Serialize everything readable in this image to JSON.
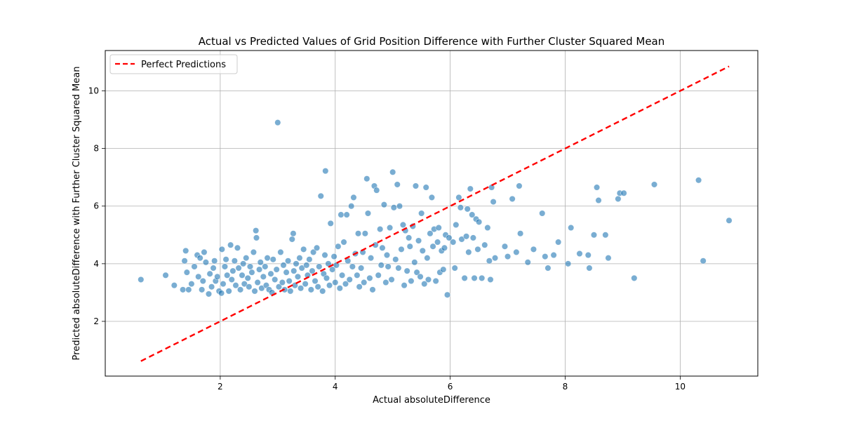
{
  "chart_data": {
    "type": "scatter",
    "title": "Actual vs Predicted Values of Grid Position Difference with Further Cluster Squared Mean",
    "xlabel": "Actual absoluteDifference",
    "ylabel": "Predicted absoluteDifference with Further Cluster Squared Mean",
    "xlim": [
      0.0,
      11.35
    ],
    "ylim": [
      0.1,
      11.4
    ],
    "x_ticks": [
      2,
      4,
      6,
      8,
      10
    ],
    "y_ticks": [
      2,
      4,
      6,
      8,
      10
    ],
    "grid": true,
    "legend": {
      "placement": "top-left",
      "entries": [
        "Perfect Predictions"
      ]
    },
    "series": [
      {
        "kind": "scatter",
        "color": "#1f77b4",
        "alpha": 0.6,
        "points": [
          [
            0.62,
            3.45
          ],
          [
            1.05,
            3.6
          ],
          [
            1.2,
            3.25
          ],
          [
            1.35,
            3.1
          ],
          [
            1.4,
            4.45
          ],
          [
            1.38,
            4.1
          ],
          [
            1.42,
            3.7
          ],
          [
            1.45,
            3.1
          ],
          [
            1.5,
            3.3
          ],
          [
            1.55,
            3.9
          ],
          [
            1.6,
            4.3
          ],
          [
            1.62,
            3.55
          ],
          [
            1.65,
            4.2
          ],
          [
            1.68,
            3.1
          ],
          [
            1.7,
            3.4
          ],
          [
            1.72,
            4.4
          ],
          [
            1.75,
            4.05
          ],
          [
            1.8,
            2.95
          ],
          [
            1.82,
            3.65
          ],
          [
            1.85,
            3.2
          ],
          [
            1.88,
            3.85
          ],
          [
            1.9,
            4.1
          ],
          [
            1.92,
            3.4
          ],
          [
            1.95,
            3.55
          ],
          [
            1.98,
            3.05
          ],
          [
            2.02,
            2.98
          ],
          [
            2.03,
            4.5
          ],
          [
            2.05,
            3.3
          ],
          [
            2.08,
            3.9
          ],
          [
            2.1,
            4.15
          ],
          [
            2.12,
            3.6
          ],
          [
            2.15,
            3.05
          ],
          [
            2.18,
            4.65
          ],
          [
            2.2,
            3.45
          ],
          [
            2.22,
            3.75
          ],
          [
            2.25,
            4.1
          ],
          [
            2.27,
            3.25
          ],
          [
            2.3,
            4.55
          ],
          [
            2.32,
            3.85
          ],
          [
            2.35,
            3.1
          ],
          [
            2.38,
            3.6
          ],
          [
            2.4,
            4.0
          ],
          [
            2.42,
            3.3
          ],
          [
            2.45,
            4.2
          ],
          [
            2.48,
            3.5
          ],
          [
            2.5,
            3.2
          ],
          [
            2.52,
            3.9
          ],
          [
            2.55,
            3.7
          ],
          [
            2.58,
            4.4
          ],
          [
            2.6,
            3.05
          ],
          [
            2.62,
            5.15
          ],
          [
            2.63,
            4.9
          ],
          [
            2.65,
            3.35
          ],
          [
            2.68,
            3.8
          ],
          [
            2.7,
            4.05
          ],
          [
            2.72,
            3.15
          ],
          [
            2.75,
            3.55
          ],
          [
            2.78,
            3.9
          ],
          [
            2.8,
            3.25
          ],
          [
            2.82,
            4.2
          ],
          [
            2.85,
            3.1
          ],
          [
            2.88,
            3.65
          ],
          [
            2.9,
            3.0
          ],
          [
            2.92,
            4.15
          ],
          [
            2.95,
            3.45
          ],
          [
            2.98,
            3.8
          ],
          [
            3.0,
            8.9
          ],
          [
            3.02,
            3.2
          ],
          [
            3.05,
            4.4
          ],
          [
            3.08,
            3.35
          ],
          [
            3.1,
            3.95
          ],
          [
            3.12,
            3.1
          ],
          [
            3.15,
            3.7
          ],
          [
            3.18,
            4.1
          ],
          [
            3.2,
            3.4
          ],
          [
            3.22,
            3.05
          ],
          [
            3.25,
            4.85
          ],
          [
            3.27,
            5.05
          ],
          [
            3.28,
            3.75
          ],
          [
            3.3,
            3.25
          ],
          [
            3.32,
            4.0
          ],
          [
            3.35,
            3.55
          ],
          [
            3.38,
            4.2
          ],
          [
            3.4,
            3.15
          ],
          [
            3.42,
            3.85
          ],
          [
            3.45,
            4.5
          ],
          [
            3.48,
            3.3
          ],
          [
            3.5,
            3.95
          ],
          [
            3.52,
            3.6
          ],
          [
            3.55,
            4.15
          ],
          [
            3.58,
            3.1
          ],
          [
            3.6,
            3.75
          ],
          [
            3.62,
            4.4
          ],
          [
            3.65,
            3.4
          ],
          [
            3.68,
            4.55
          ],
          [
            3.7,
            3.2
          ],
          [
            3.72,
            3.9
          ],
          [
            3.75,
            6.35
          ],
          [
            3.78,
            3.05
          ],
          [
            3.8,
            3.65
          ],
          [
            3.82,
            4.3
          ],
          [
            3.83,
            7.22
          ],
          [
            3.85,
            3.5
          ],
          [
            3.88,
            4.0
          ],
          [
            3.9,
            3.25
          ],
          [
            3.92,
            5.4
          ],
          [
            3.95,
            3.8
          ],
          [
            3.98,
            4.25
          ],
          [
            4.0,
            3.35
          ],
          [
            4.02,
            3.95
          ],
          [
            4.05,
            4.6
          ],
          [
            4.08,
            3.15
          ],
          [
            4.1,
            5.7
          ],
          [
            4.12,
            3.6
          ],
          [
            4.15,
            4.75
          ],
          [
            4.18,
            3.3
          ],
          [
            4.2,
            5.7
          ],
          [
            4.22,
            4.1
          ],
          [
            4.25,
            3.45
          ],
          [
            4.28,
            6.0
          ],
          [
            4.3,
            3.9
          ],
          [
            4.32,
            6.3
          ],
          [
            4.35,
            4.35
          ],
          [
            4.38,
            3.6
          ],
          [
            4.4,
            5.05
          ],
          [
            4.42,
            3.2
          ],
          [
            4.45,
            3.85
          ],
          [
            4.48,
            4.4
          ],
          [
            4.5,
            3.35
          ],
          [
            4.52,
            5.05
          ],
          [
            4.55,
            6.95
          ],
          [
            4.57,
            5.75
          ],
          [
            4.6,
            3.5
          ],
          [
            4.62,
            4.2
          ],
          [
            4.65,
            3.1
          ],
          [
            4.68,
            6.7
          ],
          [
            4.7,
            4.65
          ],
          [
            4.72,
            6.55
          ],
          [
            4.75,
            3.6
          ],
          [
            4.78,
            5.2
          ],
          [
            4.8,
            3.95
          ],
          [
            4.82,
            4.55
          ],
          [
            4.85,
            6.05
          ],
          [
            4.88,
            3.35
          ],
          [
            4.9,
            4.3
          ],
          [
            4.92,
            3.9
          ],
          [
            4.95,
            5.25
          ],
          [
            4.98,
            3.45
          ],
          [
            5.0,
            7.18
          ],
          [
            5.02,
            5.95
          ],
          [
            5.05,
            4.15
          ],
          [
            5.08,
            6.75
          ],
          [
            5.1,
            3.85
          ],
          [
            5.12,
            6.0
          ],
          [
            5.15,
            4.5
          ],
          [
            5.18,
            5.35
          ],
          [
            5.2,
            3.25
          ],
          [
            5.22,
            5.15
          ],
          [
            5.25,
            3.75
          ],
          [
            5.28,
            4.9
          ],
          [
            5.3,
            4.6
          ],
          [
            5.32,
            3.4
          ],
          [
            5.35,
            5.3
          ],
          [
            5.38,
            4.05
          ],
          [
            5.4,
            6.7
          ],
          [
            5.42,
            3.7
          ],
          [
            5.45,
            4.8
          ],
          [
            5.48,
            3.55
          ],
          [
            5.5,
            5.75
          ],
          [
            5.52,
            4.45
          ],
          [
            5.55,
            3.3
          ],
          [
            5.58,
            6.65
          ],
          [
            5.6,
            4.2
          ],
          [
            5.62,
            3.45
          ],
          [
            5.65,
            5.05
          ],
          [
            5.68,
            6.3
          ],
          [
            5.7,
            4.6
          ],
          [
            5.72,
            5.2
          ],
          [
            5.75,
            3.4
          ],
          [
            5.78,
            4.75
          ],
          [
            5.8,
            5.25
          ],
          [
            5.82,
            3.7
          ],
          [
            5.85,
            4.45
          ],
          [
            5.88,
            3.8
          ],
          [
            5.9,
            4.55
          ],
          [
            5.92,
            5.0
          ],
          [
            5.95,
            2.92
          ],
          [
            5.98,
            4.9
          ],
          [
            6.05,
            4.75
          ],
          [
            6.08,
            3.85
          ],
          [
            6.1,
            5.35
          ],
          [
            6.15,
            6.3
          ],
          [
            6.18,
            5.95
          ],
          [
            6.2,
            4.85
          ],
          [
            6.25,
            3.5
          ],
          [
            6.28,
            4.95
          ],
          [
            6.3,
            5.9
          ],
          [
            6.32,
            4.4
          ],
          [
            6.35,
            6.6
          ],
          [
            6.38,
            5.7
          ],
          [
            6.4,
            4.9
          ],
          [
            6.42,
            3.5
          ],
          [
            6.45,
            5.55
          ],
          [
            6.48,
            4.5
          ],
          [
            6.5,
            5.45
          ],
          [
            6.55,
            3.5
          ],
          [
            6.6,
            4.65
          ],
          [
            6.65,
            5.25
          ],
          [
            6.68,
            4.1
          ],
          [
            6.7,
            3.45
          ],
          [
            6.72,
            6.65
          ],
          [
            6.75,
            6.15
          ],
          [
            6.78,
            4.2
          ],
          [
            6.95,
            4.6
          ],
          [
            7.0,
            4.25
          ],
          [
            7.08,
            6.25
          ],
          [
            7.15,
            4.4
          ],
          [
            7.2,
            6.7
          ],
          [
            7.22,
            5.05
          ],
          [
            7.35,
            4.05
          ],
          [
            7.45,
            4.5
          ],
          [
            7.6,
            5.75
          ],
          [
            7.65,
            4.25
          ],
          [
            7.7,
            3.85
          ],
          [
            7.8,
            4.3
          ],
          [
            7.88,
            4.75
          ],
          [
            8.05,
            4.0
          ],
          [
            8.1,
            5.25
          ],
          [
            8.25,
            4.35
          ],
          [
            8.4,
            4.3
          ],
          [
            8.42,
            3.85
          ],
          [
            8.5,
            5.0
          ],
          [
            8.55,
            6.65
          ],
          [
            8.58,
            6.2
          ],
          [
            8.7,
            5.0
          ],
          [
            8.75,
            4.2
          ],
          [
            8.92,
            6.25
          ],
          [
            8.95,
            6.45
          ],
          [
            9.02,
            6.45
          ],
          [
            9.2,
            3.5
          ],
          [
            9.55,
            6.75
          ],
          [
            10.32,
            6.9
          ],
          [
            10.4,
            4.1
          ],
          [
            10.85,
            5.5
          ]
        ]
      },
      {
        "kind": "line",
        "name": "Perfect Predictions",
        "color": "#ff0000",
        "dashed": true,
        "points": [
          [
            0.62,
            0.62
          ],
          [
            10.85,
            10.85
          ]
        ]
      }
    ]
  }
}
